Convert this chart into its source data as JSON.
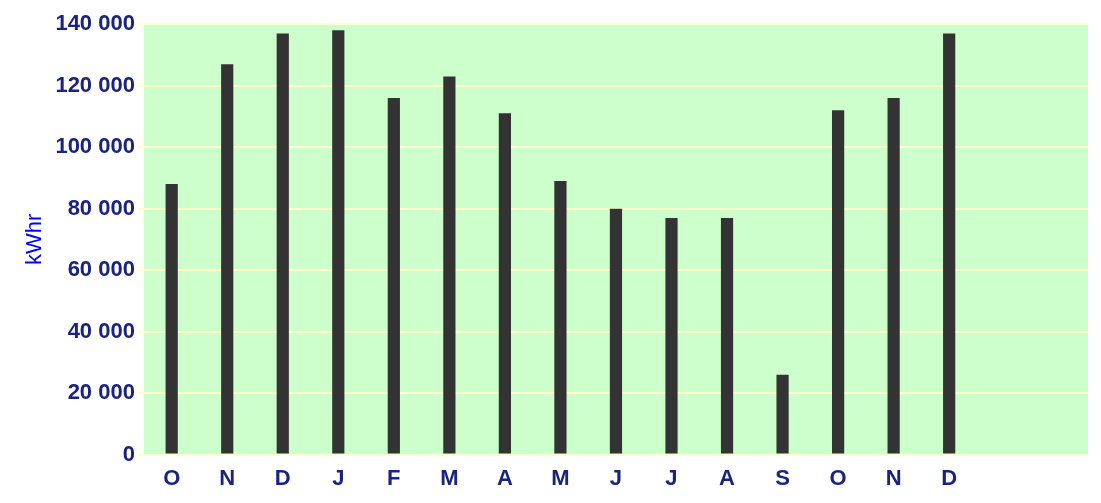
{
  "chart_data": {
    "type": "bar",
    "ylabel": "kWhr",
    "categories": [
      "O",
      "N",
      "D",
      "J",
      "F",
      "M",
      "A",
      "M",
      "J",
      "J",
      "A",
      "S",
      "O",
      "N",
      "D",
      null,
      null
    ],
    "values": [
      88000,
      127000,
      137000,
      138000,
      116000,
      123000,
      111000,
      89000,
      80000,
      77000,
      77000,
      26000,
      112000,
      116000,
      137000,
      null,
      null
    ],
    "color": "#333333",
    "ylim": [
      0,
      140000
    ],
    "yticks": [
      0,
      20000,
      40000,
      60000,
      80000,
      100000,
      120000,
      140000
    ],
    "grid": "y",
    "legend": false
  }
}
